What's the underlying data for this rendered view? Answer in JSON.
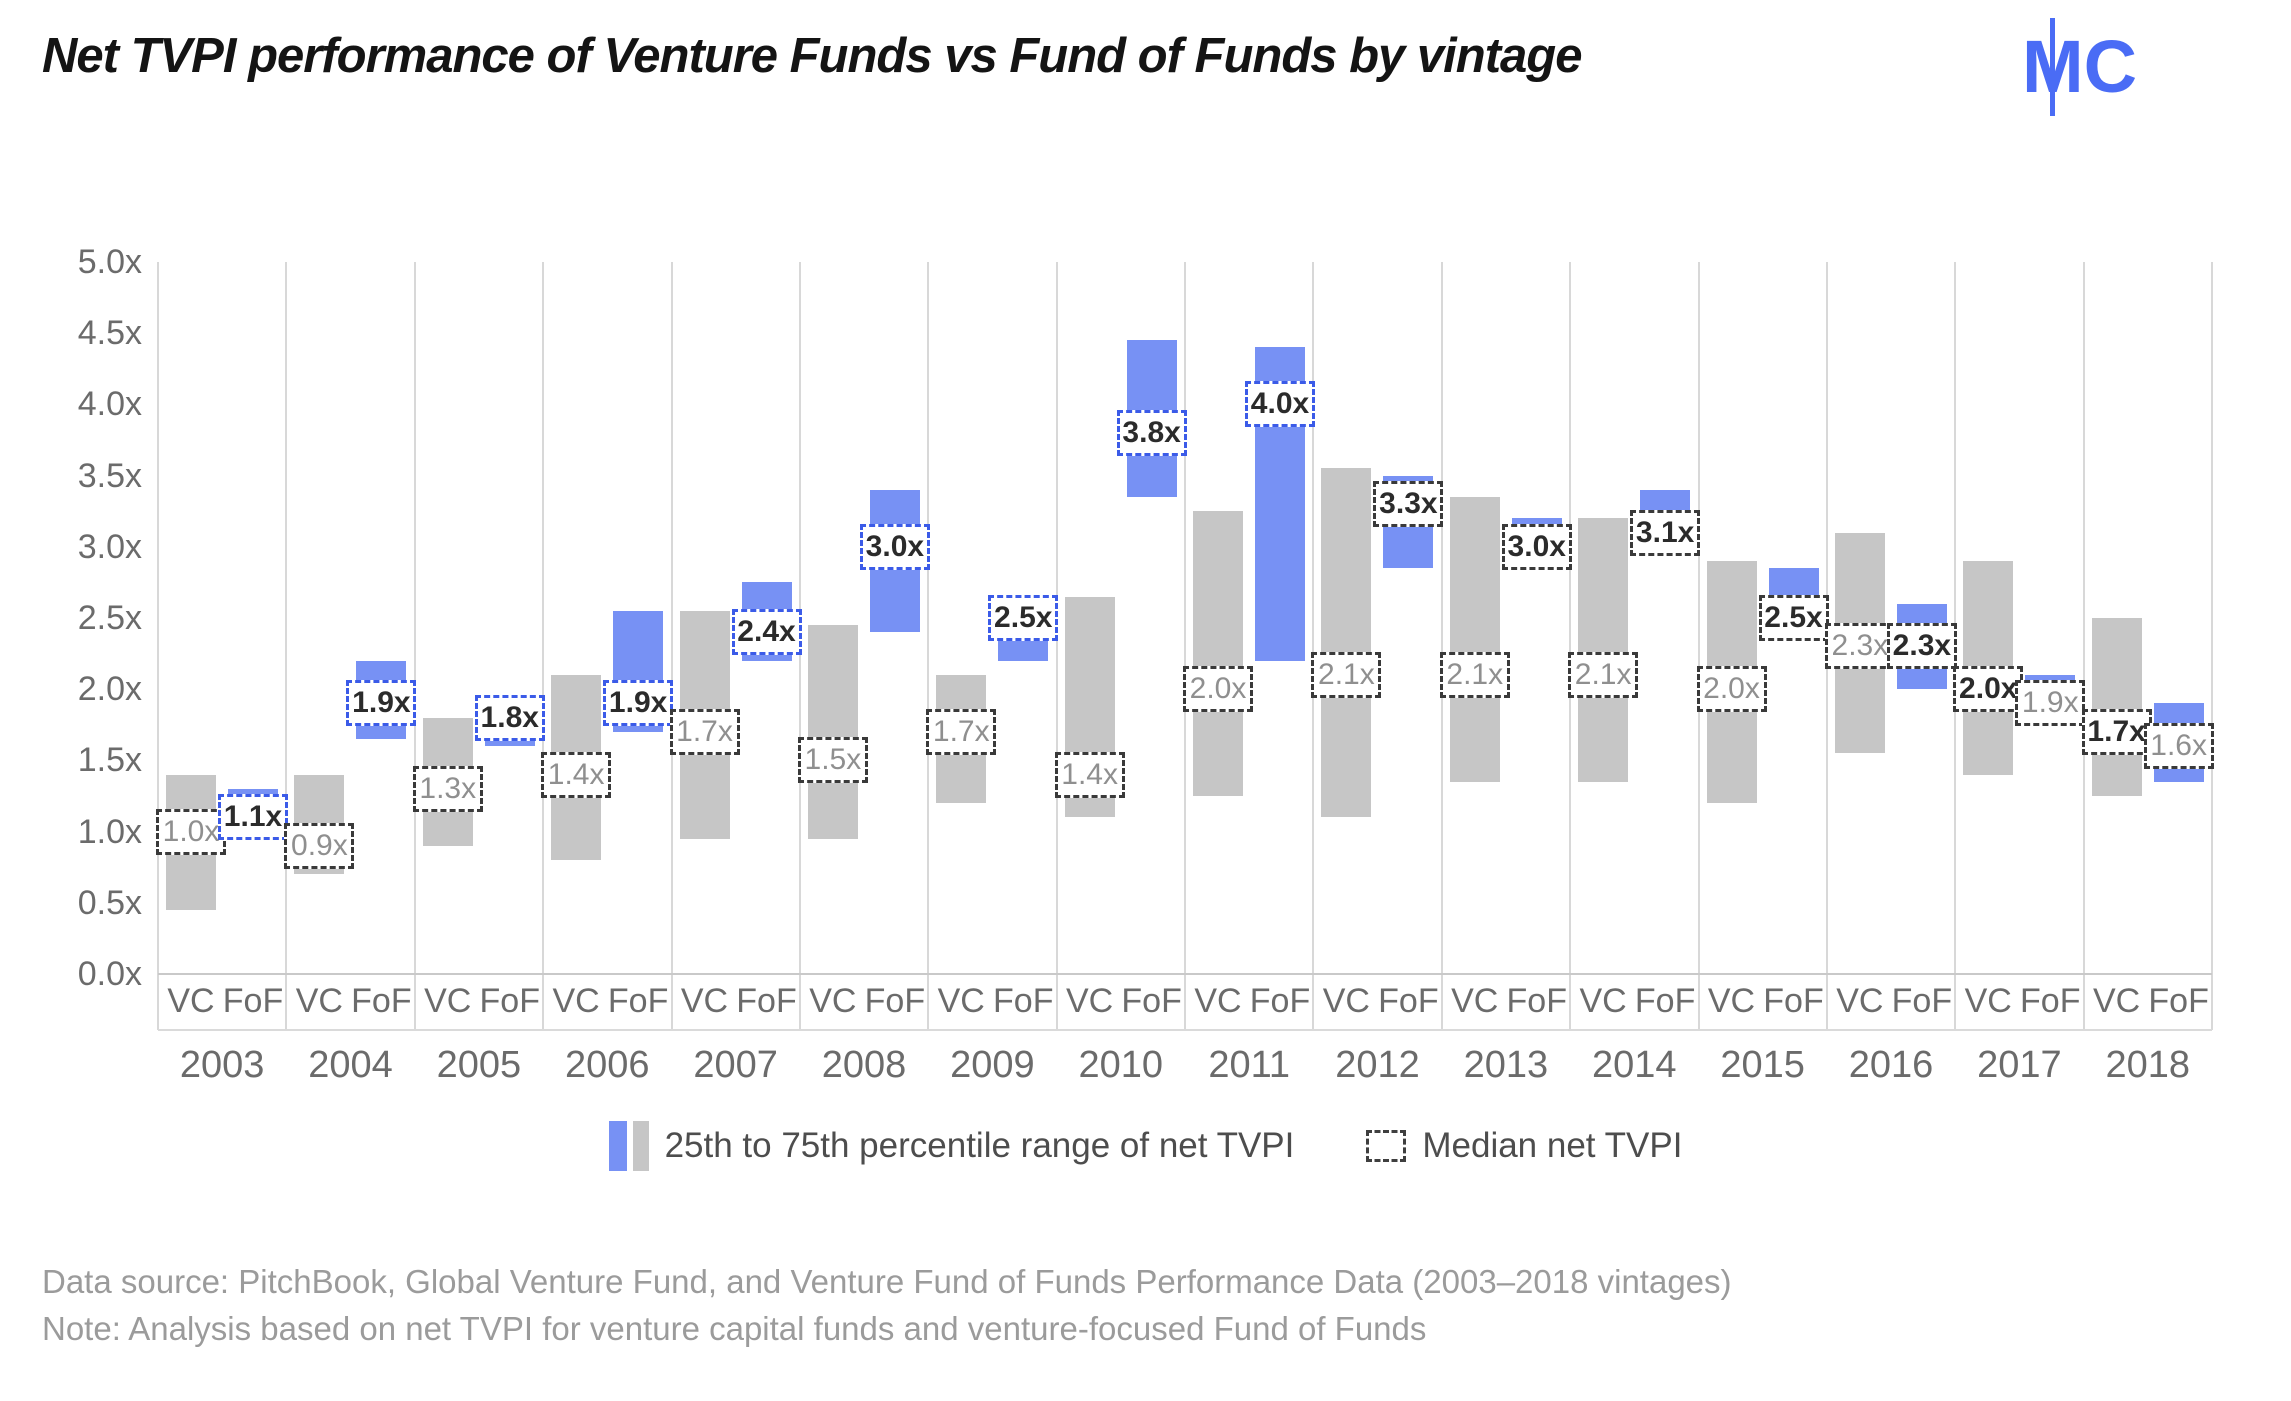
{
  "title": "Net TVPI performance of Venture Funds vs Fund of Funds by vintage",
  "logo": {
    "left_letter": "M",
    "right_letter": "C",
    "color": "#4a6cf5"
  },
  "legend": {
    "range_label": "25th to 75th percentile range of net TVPI",
    "median_label": "Median net TVPI"
  },
  "footer": {
    "line1": "Data source: PitchBook, Global Venture Fund, and Venture Fund of Funds Performance Data (2003–2018 vintages)",
    "line2": "Note: Analysis based on net TVPI for venture capital funds and venture-focused Fund of Funds"
  },
  "colors": {
    "fof_bar": "#7791f4",
    "vc_bar": "#c6c6c6",
    "fof_label_border": "#3b5be8",
    "vc_label_border": "#3a3a3a",
    "gridline": "#d8d8d8",
    "axis_text": "#6b6b6b",
    "logo_blue": "#4a6cf5"
  },
  "chart_data": {
    "type": "bar",
    "subtype": "floating-range-bars",
    "unit": "net TVPI multiple (x)",
    "ylim": [
      0.0,
      5.0
    ],
    "ytick_labels": [
      "5.0x",
      "4.5x",
      "4.0x",
      "3.5x",
      "3.0x",
      "2.5x",
      "2.0x",
      "1.5x",
      "1.0x",
      "0.5x",
      "0.0x"
    ],
    "group_labels": {
      "vc": "VC",
      "fof": "FoF"
    },
    "grid": "vertical-between-groups",
    "legend_position": "bottom-center",
    "series": [
      {
        "year": "2003",
        "vc": {
          "p25": 0.45,
          "p75": 1.4,
          "median": 1.0,
          "label": "1.0x"
        },
        "fof": {
          "p25": 1.05,
          "p75": 1.3,
          "median": 1.1,
          "label": "1.1x"
        },
        "emphasis": "fof",
        "fof_label_blue": true
      },
      {
        "year": "2004",
        "vc": {
          "p25": 0.7,
          "p75": 1.4,
          "median": 0.9,
          "label": "0.9x"
        },
        "fof": {
          "p25": 1.65,
          "p75": 2.2,
          "median": 1.9,
          "label": "1.9x"
        },
        "emphasis": "fof",
        "fof_label_blue": true
      },
      {
        "year": "2005",
        "vc": {
          "p25": 0.9,
          "p75": 1.8,
          "median": 1.3,
          "label": "1.3x"
        },
        "fof": {
          "p25": 1.6,
          "p75": 1.75,
          "median": 1.8,
          "label": "1.8x"
        },
        "emphasis": "fof",
        "fof_label_blue": true
      },
      {
        "year": "2006",
        "vc": {
          "p25": 0.8,
          "p75": 2.1,
          "median": 1.4,
          "label": "1.4x"
        },
        "fof": {
          "p25": 1.7,
          "p75": 2.55,
          "median": 1.9,
          "label": "1.9x"
        },
        "emphasis": "fof",
        "fof_label_blue": true
      },
      {
        "year": "2007",
        "vc": {
          "p25": 0.95,
          "p75": 2.55,
          "median": 1.7,
          "label": "1.7x"
        },
        "fof": {
          "p25": 2.2,
          "p75": 2.75,
          "median": 2.4,
          "label": "2.4x"
        },
        "emphasis": "fof",
        "fof_label_blue": true
      },
      {
        "year": "2008",
        "vc": {
          "p25": 0.95,
          "p75": 2.45,
          "median": 1.5,
          "label": "1.5x"
        },
        "fof": {
          "p25": 2.4,
          "p75": 3.4,
          "median": 3.0,
          "label": "3.0x"
        },
        "emphasis": "fof",
        "fof_label_blue": true
      },
      {
        "year": "2009",
        "vc": {
          "p25": 1.2,
          "p75": 2.1,
          "median": 1.7,
          "label": "1.7x"
        },
        "fof": {
          "p25": 2.2,
          "p75": 2.35,
          "median": 2.5,
          "label": "2.5x"
        },
        "emphasis": "fof",
        "fof_label_blue": true
      },
      {
        "year": "2010",
        "vc": {
          "p25": 1.1,
          "p75": 2.65,
          "median": 1.4,
          "label": "1.4x"
        },
        "fof": {
          "p25": 3.35,
          "p75": 4.45,
          "median": 3.8,
          "label": "3.8x"
        },
        "emphasis": "fof",
        "fof_label_blue": true
      },
      {
        "year": "2011",
        "vc": {
          "p25": 1.25,
          "p75": 3.25,
          "median": 2.0,
          "label": "2.0x"
        },
        "fof": {
          "p25": 2.2,
          "p75": 4.4,
          "median": 4.0,
          "label": "4.0x"
        },
        "emphasis": "fof",
        "fof_label_blue": true
      },
      {
        "year": "2012",
        "vc": {
          "p25": 1.1,
          "p75": 3.55,
          "median": 2.1,
          "label": "2.1x"
        },
        "fof": {
          "p25": 2.85,
          "p75": 3.5,
          "median": 3.3,
          "label": "3.3x"
        },
        "emphasis": "fof",
        "fof_label_blue": false
      },
      {
        "year": "2013",
        "vc": {
          "p25": 1.35,
          "p75": 3.35,
          "median": 2.1,
          "label": "2.1x"
        },
        "fof": {
          "p25": 3.1,
          "p75": 3.2,
          "median": 3.0,
          "label": "3.0x"
        },
        "emphasis": "fof",
        "fof_label_blue": false
      },
      {
        "year": "2014",
        "vc": {
          "p25": 1.35,
          "p75": 3.2,
          "median": 2.1,
          "label": "2.1x"
        },
        "fof": {
          "p25": 3.25,
          "p75": 3.4,
          "median": 3.1,
          "label": "3.1x"
        },
        "emphasis": "fof",
        "fof_label_blue": false
      },
      {
        "year": "2015",
        "vc": {
          "p25": 1.2,
          "p75": 2.9,
          "median": 2.0,
          "label": "2.0x"
        },
        "fof": {
          "p25": 2.65,
          "p75": 2.85,
          "median": 2.5,
          "label": "2.5x"
        },
        "emphasis": "fof",
        "fof_label_blue": false
      },
      {
        "year": "2016",
        "vc": {
          "p25": 1.55,
          "p75": 3.1,
          "median": 2.3,
          "label": "2.3x"
        },
        "fof": {
          "p25": 2.0,
          "p75": 2.6,
          "median": 2.3,
          "label": "2.3x"
        },
        "emphasis": "fof",
        "fof_label_blue": false
      },
      {
        "year": "2017",
        "vc": {
          "p25": 1.4,
          "p75": 2.9,
          "median": 2.0,
          "label": "2.0x"
        },
        "fof": {
          "p25": 2.0,
          "p75": 2.1,
          "median": 1.9,
          "label": "1.9x"
        },
        "emphasis": "vc",
        "fof_label_blue": false
      },
      {
        "year": "2018",
        "vc": {
          "p25": 1.25,
          "p75": 2.5,
          "median": 1.7,
          "label": "1.7x"
        },
        "fof": {
          "p25": 1.35,
          "p75": 1.9,
          "median": 1.6,
          "label": "1.6x"
        },
        "emphasis": "vc",
        "fof_label_blue": false
      }
    ]
  }
}
